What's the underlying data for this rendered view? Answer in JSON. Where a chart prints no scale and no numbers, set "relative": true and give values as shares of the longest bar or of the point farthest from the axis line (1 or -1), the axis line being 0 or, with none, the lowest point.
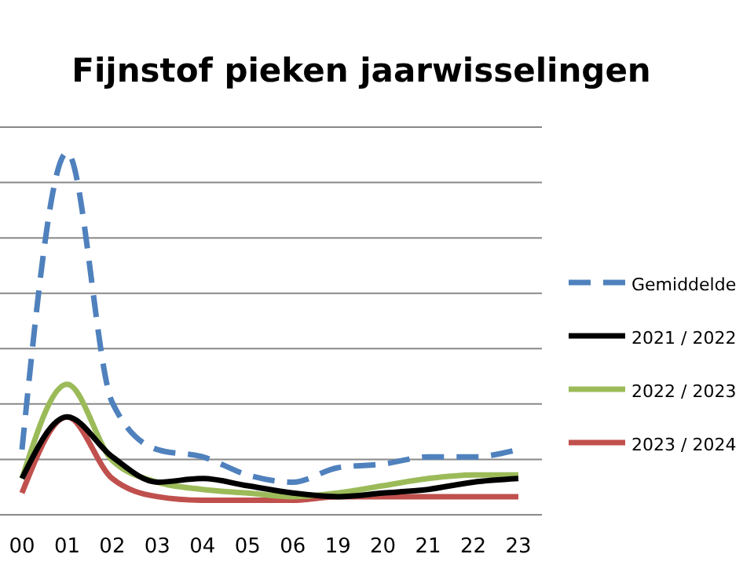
{
  "chart_data": {
    "type": "line",
    "title": "Fijnstof pieken jaarwisselingen",
    "relative": true,
    "grid": "y",
    "legend": "right",
    "categories": [
      "00",
      "01",
      "02",
      "03",
      "04",
      "05",
      "06",
      "19",
      "20",
      "21",
      "22",
      "23"
    ],
    "series": [
      {
        "name": "Gemiddelde",
        "color": "#4f81bd",
        "line_style": "dashed",
        "values": [
          0.18,
          1,
          0.31,
          0.18,
          0.16,
          0.11,
          0.09,
          0.13,
          0.14,
          0.16,
          0.16,
          0.18
        ]
      },
      {
        "name": "2021 / 2022",
        "color": "#000000",
        "values": [
          0.1,
          0.27,
          0.16,
          0.09,
          0.1,
          0.08,
          0.06,
          0.05,
          0.06,
          0.07,
          0.09,
          0.1
        ]
      },
      {
        "name": "2022 / 2023",
        "color": "#9bbb59",
        "values": [
          0.1,
          0.36,
          0.15,
          0.09,
          0.07,
          0.06,
          0.05,
          0.06,
          0.08,
          0.1,
          0.11,
          0.11
        ]
      },
      {
        "name": "2023 / 2024",
        "color": "#c0504d",
        "values": [
          0.06,
          0.27,
          0.1,
          0.05,
          0.04,
          0.04,
          0.04,
          0.05,
          0.05,
          0.05,
          0.05,
          0.05
        ]
      }
    ]
  }
}
